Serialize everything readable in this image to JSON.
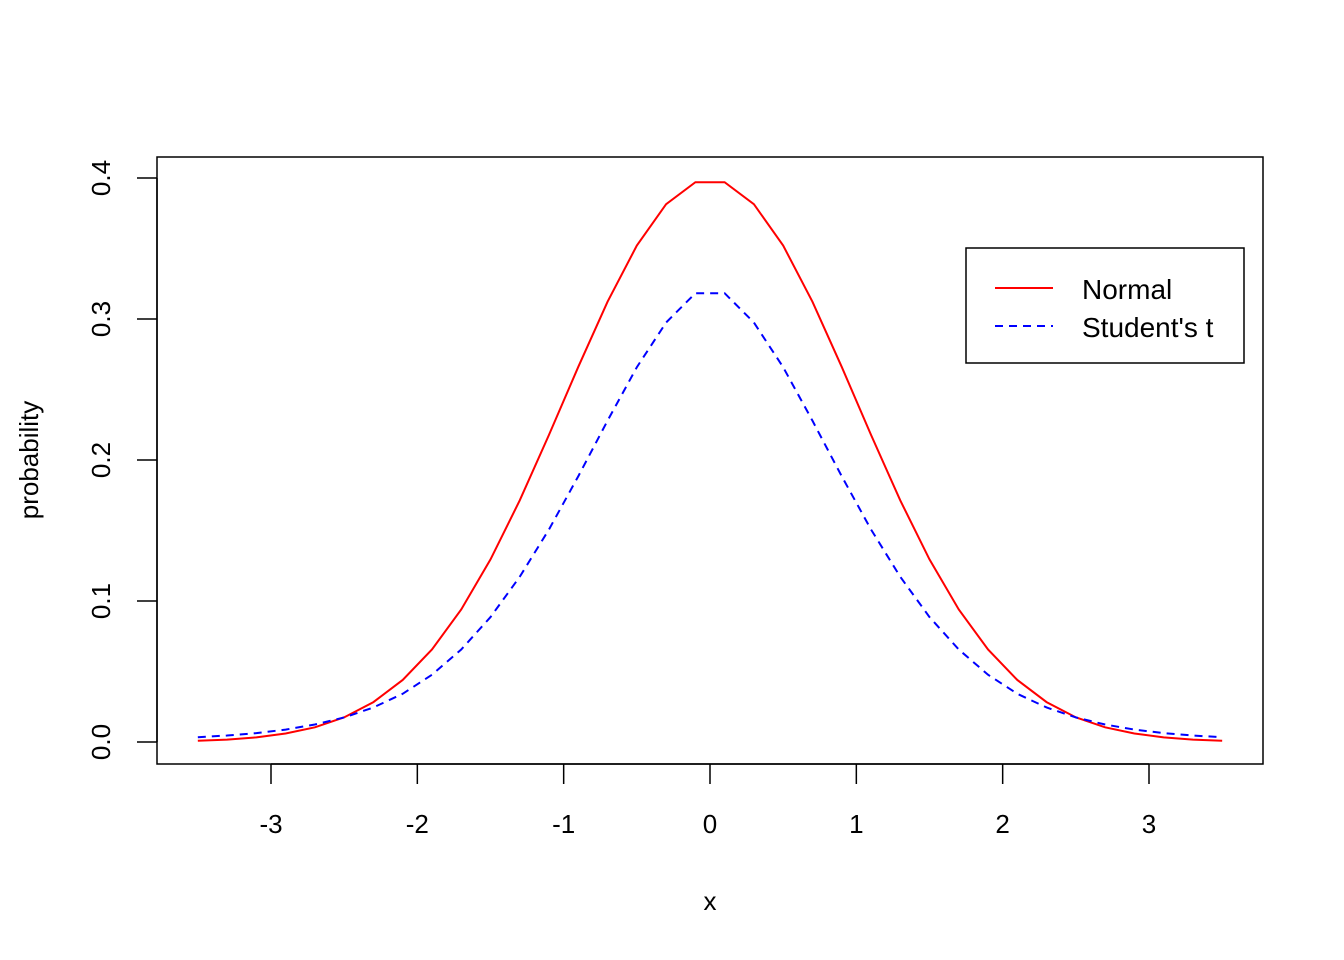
{
  "chart_data": {
    "type": "line",
    "title": "",
    "xlabel": "x",
    "ylabel": "probability",
    "xlim": [
      -3.5,
      3.5
    ],
    "ylim": [
      0,
      0.4
    ],
    "x_ticks": [
      -3,
      -2,
      -1,
      0,
      1,
      2,
      3
    ],
    "x_tick_labels": [
      "-3",
      "-2",
      "-1",
      "0",
      "1",
      "2",
      "3"
    ],
    "y_ticks": [
      0.0,
      0.1,
      0.2,
      0.3,
      0.4
    ],
    "y_tick_labels": [
      "0.0",
      "0.1",
      "0.2",
      "0.3",
      "0.4"
    ],
    "grid": false,
    "legend_position": "top-right",
    "x": [
      -3.5,
      -3.3,
      -3.1,
      -2.9,
      -2.7,
      -2.5,
      -2.3,
      -2.1,
      -1.9,
      -1.7,
      -1.5,
      -1.3,
      -1.1,
      -0.9,
      -0.7,
      -0.5,
      -0.3,
      -0.1,
      0.1,
      0.3,
      0.5,
      0.7,
      0.9,
      1.1,
      1.3,
      1.5,
      1.7,
      1.9,
      2.1,
      2.3,
      2.5,
      2.7,
      2.9,
      3.1,
      3.3,
      3.5
    ],
    "series": [
      {
        "name": "Normal",
        "color": "#ff0000",
        "line_style": "solid",
        "values": [
          0.0009,
          0.0017,
          0.0033,
          0.006,
          0.0104,
          0.0175,
          0.0283,
          0.044,
          0.0656,
          0.094,
          0.1295,
          0.1714,
          0.2179,
          0.2661,
          0.3123,
          0.3521,
          0.3814,
          0.397,
          0.397,
          0.3814,
          0.3521,
          0.3123,
          0.2661,
          0.2179,
          0.1714,
          0.1295,
          0.094,
          0.0656,
          0.044,
          0.0283,
          0.0175,
          0.0104,
          0.006,
          0.0033,
          0.0017,
          0.0009
        ]
      },
      {
        "name": "Student's t",
        "color": "#0000ff",
        "line_style": "dashed",
        "values": [
          0.0034,
          0.0046,
          0.0063,
          0.0088,
          0.0124,
          0.0174,
          0.0245,
          0.0342,
          0.0477,
          0.0656,
          0.0886,
          0.1172,
          0.1508,
          0.1885,
          0.2279,
          0.2658,
          0.2975,
          0.3183,
          0.3183,
          0.2975,
          0.2658,
          0.2279,
          0.1885,
          0.1508,
          0.1172,
          0.0886,
          0.0656,
          0.0477,
          0.0342,
          0.0245,
          0.0174,
          0.0124,
          0.0088,
          0.0063,
          0.0046,
          0.0034
        ]
      }
    ]
  }
}
